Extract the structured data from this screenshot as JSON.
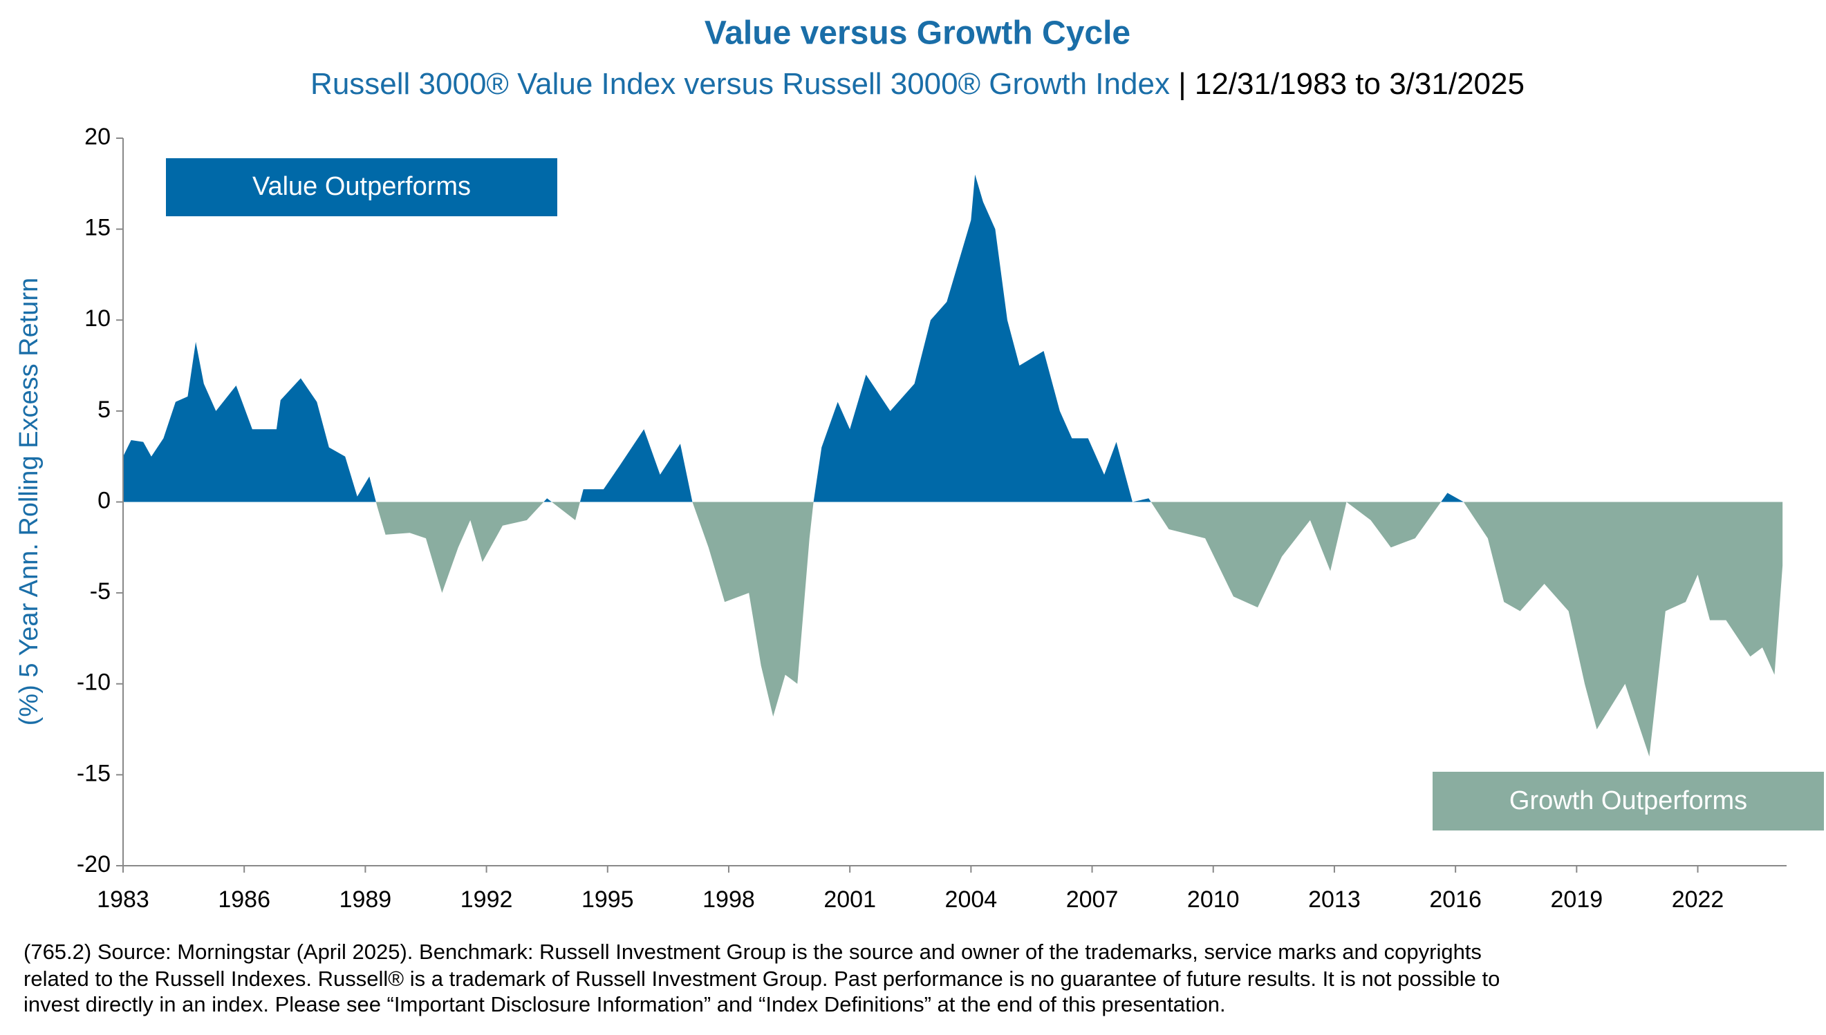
{
  "chart_data": {
    "type": "area",
    "title": "Value versus Growth Cycle",
    "subtitle": "Russell 3000® Value Index versus Russell 3000® Growth Index",
    "subtitle_dates": "| 12/31/1983 to 3/31/2025",
    "y_label": "(%) 5 Year Ann. Rolling Excess Return",
    "annotations": [
      "Value Outperforms",
      "Growth Outperforms"
    ],
    "footnote": [
      "(765.2) Source: Morningstar (April 2025). Benchmark: Russell Investment Group is the source and owner of the trademarks, service marks and copyrights",
      "related to the Russell Indexes. Russell® is a trademark of Russell Investment Group. Past performance is no guarantee of future results. It is not possible to",
      "invest directly in an index. Please see “Important Disclosure Information” and “Index Definitions” at the end of this presentation."
    ],
    "positive_color": "#0069a8",
    "negative_color": "#8aada0",
    "x": [
      1983.0,
      1983.2,
      1983.5,
      1983.7,
      1984.0,
      1984.3,
      1984.6,
      1984.8,
      1985.0,
      1985.3,
      1985.8,
      1986.2,
      1986.8,
      1986.9,
      1987.4,
      1987.8,
      1988.1,
      1988.5,
      1988.8,
      1989.1,
      1989.3,
      1989.5,
      1990.1,
      1990.5,
      1990.9,
      1991.3,
      1991.6,
      1991.9,
      1992.4,
      1993.0,
      1993.5,
      1994.2,
      1994.4,
      1994.9,
      1995.3,
      1995.9,
      1996.3,
      1996.8,
      1997.1,
      1997.5,
      1997.9,
      1998.5,
      1998.8,
      1999.1,
      1999.4,
      1999.7,
      2000.0,
      2000.1,
      2000.3,
      2000.7,
      2001.0,
      2001.4,
      2002.0,
      2002.6,
      2003.0,
      2003.4,
      2004.0,
      2004.1,
      2004.3,
      2004.6,
      2004.9,
      2005.2,
      2005.8,
      2006.2,
      2006.5,
      2006.9,
      2007.3,
      2007.6,
      2008.0,
      2008.4,
      2008.9,
      2009.8,
      2010.5,
      2011.1,
      2011.7,
      2012.4,
      2012.9,
      2013.3,
      2013.9,
      2014.4,
      2015.0,
      2015.8,
      2016.2,
      2016.8,
      2017.2,
      2017.6,
      2018.2,
      2018.8,
      2019.2,
      2019.5,
      2020.2,
      2020.8,
      2021.2,
      2021.7,
      2022.0,
      2022.3,
      2022.7,
      2023.3,
      2023.6,
      2023.9,
      2024.1
    ],
    "values": [
      2.5,
      3.4,
      3.3,
      2.5,
      3.5,
      5.5,
      5.8,
      8.8,
      6.5,
      5.0,
      6.4,
      4.0,
      4.0,
      5.6,
      6.8,
      5.5,
      3.0,
      2.5,
      0.3,
      1.4,
      -0.3,
      -1.8,
      -1.7,
      -2.0,
      -5.0,
      -2.5,
      -1.0,
      -3.3,
      -1.3,
      -1.0,
      0.2,
      -1.0,
      0.7,
      0.7,
      2.0,
      4.0,
      1.5,
      3.2,
      0.0,
      -2.5,
      -5.5,
      -5.0,
      -9.0,
      -11.8,
      -9.5,
      -10.0,
      -2.0,
      0.0,
      3.0,
      5.5,
      4.0,
      7.0,
      5.0,
      6.5,
      10.0,
      11.0,
      15.5,
      18.0,
      16.5,
      15.0,
      10.0,
      7.5,
      8.3,
      5.0,
      3.5,
      3.5,
      1.5,
      3.3,
      0.0,
      0.2,
      -1.5,
      -2.0,
      -5.2,
      -5.8,
      -3.0,
      -1.0,
      -3.8,
      0.0,
      -1.0,
      -2.5,
      -2.0,
      0.5,
      0.0,
      -2.0,
      -5.5,
      -6.0,
      -4.5,
      -6.0,
      -10.0,
      -12.5,
      -10.0,
      -14.0,
      -6.0,
      -5.5,
      -4.0,
      -6.5,
      -6.5,
      -8.5,
      -8.0,
      -9.5,
      -3.5
    ],
    "xlim": [
      1983,
      2024.2
    ],
    "xticks": [
      1983,
      1986,
      1989,
      1992,
      1995,
      1998,
      2001,
      2004,
      2007,
      2010,
      2013,
      2016,
      2019,
      2022
    ],
    "ylim": [
      -20,
      20
    ],
    "yticks": [
      -20,
      -15,
      -10,
      -5,
      0,
      5,
      10,
      15,
      20
    ],
    "grid": false
  }
}
